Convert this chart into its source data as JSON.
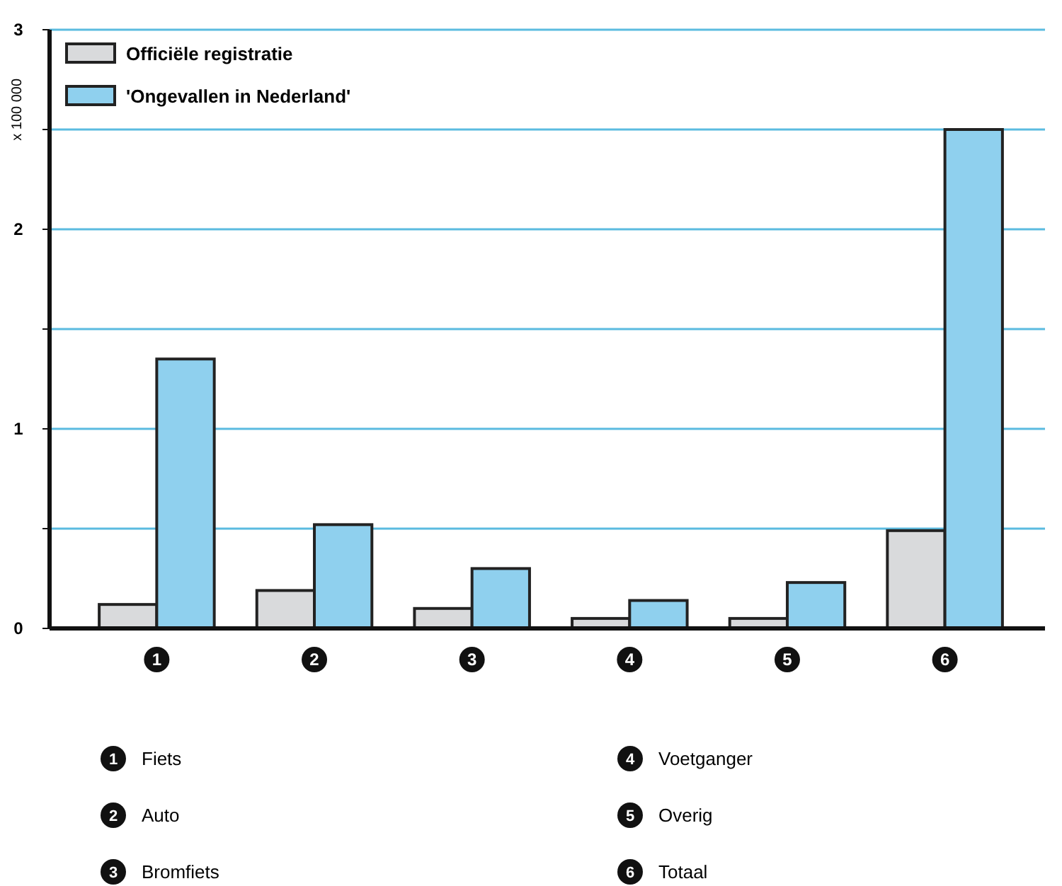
{
  "chart_data": {
    "type": "bar",
    "ylabel": "x 100 000",
    "categories": [
      "1",
      "2",
      "3",
      "4",
      "5",
      "6"
    ],
    "series": [
      {
        "name": "Officiële registratie",
        "color": "#d9dadc",
        "values": [
          0.12,
          0.19,
          0.1,
          0.05,
          0.05,
          0.49
        ]
      },
      {
        "name": "'Ongevallen in Nederland'",
        "color": "#8fd0ee",
        "values": [
          1.35,
          0.52,
          0.3,
          0.14,
          0.23,
          2.5
        ]
      }
    ],
    "ylim": [
      0,
      3
    ],
    "yticks": [
      0,
      {
        "value": 0.5,
        "label": null
      },
      1,
      {
        "value": 1.5,
        "label": null
      },
      2,
      {
        "value": 2.5,
        "label": null
      },
      3
    ],
    "grid": "y",
    "legend": "top left",
    "annotations": [
      "Fiets",
      "Auto",
      "Bromfiets",
      "Voetganger",
      "Overig",
      "Totaal"
    ]
  }
}
